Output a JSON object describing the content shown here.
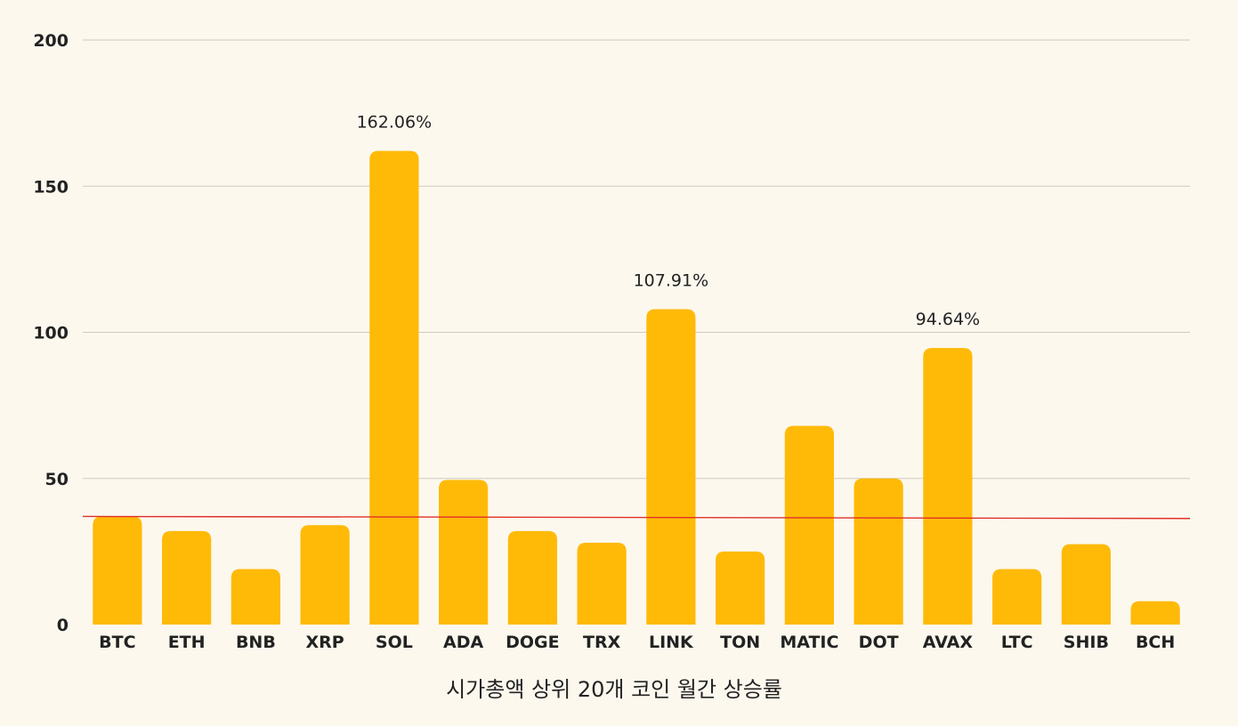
{
  "chart_data": {
    "type": "bar",
    "title": "",
    "xlabel": "시가총액 상위 20개 코인 월간 상승률",
    "ylabel": "",
    "ylim": [
      0,
      200
    ],
    "yticks": [
      "0",
      "50",
      "100",
      "150",
      "200"
    ],
    "grid": true,
    "legend": "none",
    "categories": [
      "BTC",
      "ETH",
      "BNB",
      "XRP",
      "SOL",
      "ADA",
      "DOGE",
      "TRX",
      "LINK",
      "TON",
      "MATIC",
      "DOT",
      "AVAX",
      "LTC",
      "SHIB",
      "BCH"
    ],
    "series": [
      {
        "values": [
          37,
          32,
          19,
          34,
          162.06,
          49.5,
          32,
          28,
          107.91,
          25,
          68,
          50,
          94.64,
          19,
          27.5,
          8
        ]
      }
    ],
    "data_labels": [
      {
        "index": 4,
        "text": "162.06%"
      },
      {
        "index": 8,
        "text": "107.91%"
      },
      {
        "index": 12,
        "text": "94.64%"
      }
    ],
    "trendline": {
      "start": 37,
      "end": 36.3,
      "color": "#e0302a"
    },
    "colors": {
      "background": "#fcf8ee",
      "bar": "#ffba08",
      "grid": "#cfcac0",
      "text": "#222222"
    }
  }
}
